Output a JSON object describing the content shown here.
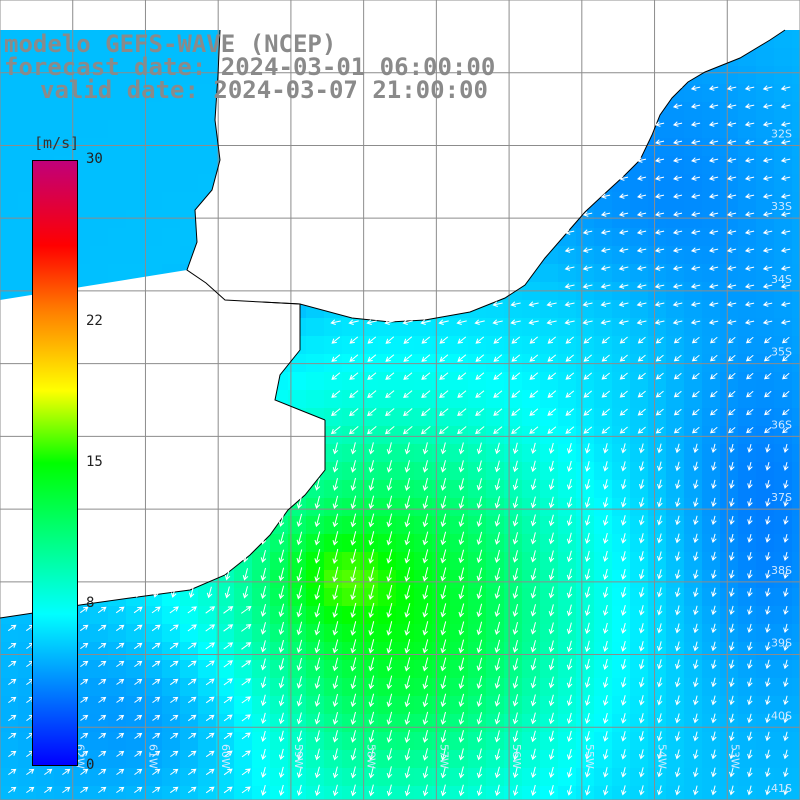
{
  "title": {
    "line1": "modelo GEFS-WAVE (NCEP)",
    "line2": "forecast date: 2024-03-01 06:00:00",
    "line3": "valid date: 2024-03-07 21:00:00"
  },
  "colorbar": {
    "unit": "[m/s]",
    "range": [
      0,
      30
    ],
    "ticks": [
      {
        "value": 30,
        "label": "30"
      },
      {
        "value": 22,
        "label": "22"
      },
      {
        "value": 15,
        "label": "15"
      },
      {
        "value": 8,
        "label": "8"
      },
      {
        "value": 0,
        "label": "0"
      }
    ]
  },
  "map": {
    "lon_range": [
      -63,
      -52
    ],
    "lat_range": [
      -41,
      -30
    ],
    "lat_labels": [
      {
        "lat": -32,
        "label": "32S"
      },
      {
        "lat": -33,
        "label": "33S"
      },
      {
        "lat": -34,
        "label": "34S"
      },
      {
        "lat": -35,
        "label": "35S"
      },
      {
        "lat": -36,
        "label": "36S"
      },
      {
        "lat": -37,
        "label": "37S"
      },
      {
        "lat": -38,
        "label": "38S"
      },
      {
        "lat": -39,
        "label": "39S"
      },
      {
        "lat": -40,
        "label": "40S"
      },
      {
        "lat": -41,
        "label": "41S"
      }
    ],
    "lon_labels": [
      {
        "lon": -62,
        "label": "62W"
      },
      {
        "lon": -61,
        "label": "61W"
      },
      {
        "lon": -60,
        "label": "60W"
      },
      {
        "lon": -59,
        "label": "59W"
      },
      {
        "lon": -58,
        "label": "58W"
      },
      {
        "lon": -57,
        "label": "57W"
      },
      {
        "lon": -56,
        "label": "56W"
      },
      {
        "lon": -55,
        "label": "55W"
      },
      {
        "lon": -54,
        "label": "54W"
      },
      {
        "lon": -53,
        "label": "53W"
      }
    ],
    "land_color": "#ffffff",
    "grid_color": "#8c8c8c",
    "coast_color": "#000000",
    "arrow_color": "#ffffff"
  }
}
